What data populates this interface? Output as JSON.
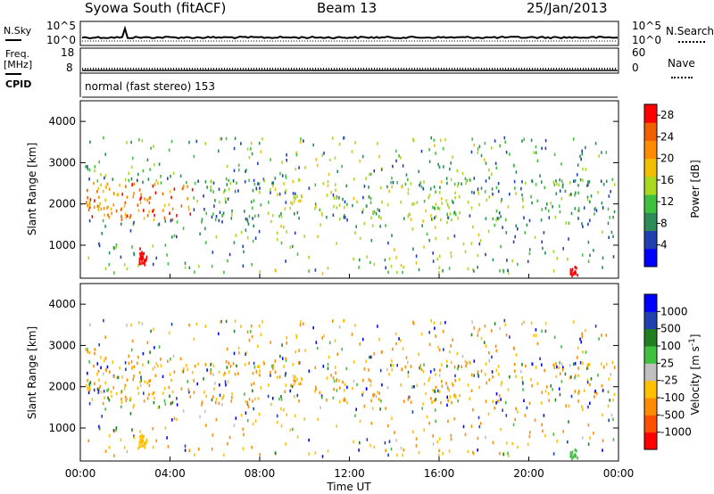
{
  "header": {
    "radar": "Syowa South (fitACF)",
    "beam": "Beam 13",
    "date": "25/Jan/2013"
  },
  "panels": {
    "noise": {
      "left_label": "N.Sky",
      "right_label": "N.Search",
      "left_ticks": [
        "10^5",
        "10^0"
      ],
      "right_ticks": [
        "10^5",
        "10^0"
      ]
    },
    "freq": {
      "left_label_1": "Freq.",
      "left_label_2": "[MHz]",
      "right_label": "Nave",
      "left_ticks": [
        "18",
        "8"
      ],
      "right_ticks": [
        "60",
        "0"
      ]
    },
    "cpid": {
      "label": "CPID",
      "text": "normal (fast stereo) 153"
    }
  },
  "colors": {
    "power": [
      "#0000ff",
      "#2040b0",
      "#2e8b57",
      "#40c040",
      "#a8d820",
      "#f0c000",
      "#ff8c00",
      "#f06000",
      "#ff0000"
    ],
    "velocity": [
      "#ff0000",
      "#ff5000",
      "#ff8c00",
      "#ffc000",
      "#c0c0c0",
      "#40c040",
      "#208020",
      "#2040b0",
      "#0000ff"
    ]
  },
  "chart_data": [
    {
      "type": "heatmap",
      "panel": "power",
      "ylabel": "Slant Range [km]",
      "xlabel": "Time UT",
      "x_ticks": [
        "00:00",
        "04:00",
        "08:00",
        "12:00",
        "16:00",
        "20:00",
        "00:00"
      ],
      "y_ticks": [
        "1000",
        "2000",
        "3000",
        "4000"
      ],
      "ylim": [
        200,
        4500
      ],
      "xlim_hours": [
        0,
        24
      ],
      "colorbar": {
        "label": "Power [dB]",
        "ticks": [
          "4",
          "8",
          "12",
          "16",
          "20",
          "24",
          "28"
        ],
        "range": [
          0,
          30
        ]
      },
      "clusters": [
        {
          "t": [
            2.6,
            2.9
          ],
          "r": [
            500,
            900
          ],
          "value": "28"
        },
        {
          "t": [
            21.8,
            22.2
          ],
          "r": [
            250,
            450
          ],
          "value": "28"
        },
        {
          "t": [
            0.5,
            4.5
          ],
          "r": [
            1800,
            2500
          ],
          "value": "24"
        }
      ]
    },
    {
      "type": "heatmap",
      "panel": "velocity",
      "ylabel": "Slant Range [km]",
      "xlabel": "Time UT",
      "x_ticks": [
        "00:00",
        "04:00",
        "08:00",
        "12:00",
        "16:00",
        "20:00",
        "00:00"
      ],
      "y_ticks": [
        "1000",
        "2000",
        "3000",
        "4000"
      ],
      "ylim": [
        200,
        4500
      ],
      "xlim_hours": [
        0,
        24
      ],
      "colorbar": {
        "label": "Velocity [m s^-1]",
        "ticks": [
          "1000",
          "500",
          "100",
          "25",
          "-25",
          "-100",
          "-500",
          "-1000"
        ]
      }
    }
  ]
}
